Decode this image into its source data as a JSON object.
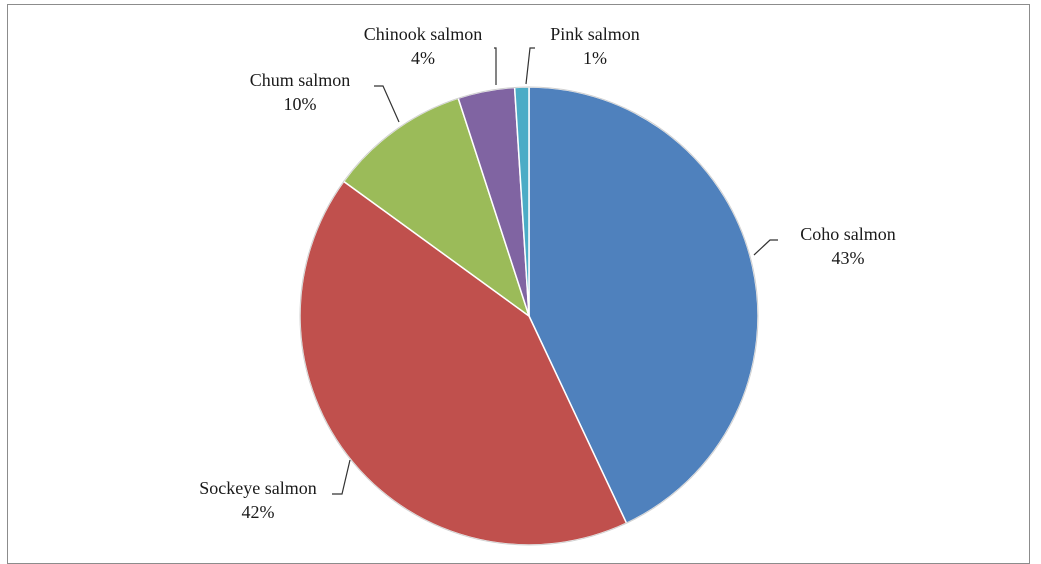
{
  "chart_data": {
    "type": "pie",
    "title": "",
    "slices": [
      {
        "name": "Coho salmon",
        "value": 43,
        "label": "43%",
        "color": "#4F81BD"
      },
      {
        "name": "Sockeye salmon",
        "value": 42,
        "label": "42%",
        "color": "#C0504D"
      },
      {
        "name": "Chum salmon",
        "value": 10,
        "label": "10%",
        "color": "#9BBB59"
      },
      {
        "name": "Chinook salmon",
        "value": 4,
        "label": "4%",
        "color": "#8064A2"
      },
      {
        "name": "Pink salmon",
        "value": 1,
        "label": "1%",
        "color": "#4BACC6"
      }
    ],
    "legend": "none",
    "labels": "outside with leader lines"
  }
}
